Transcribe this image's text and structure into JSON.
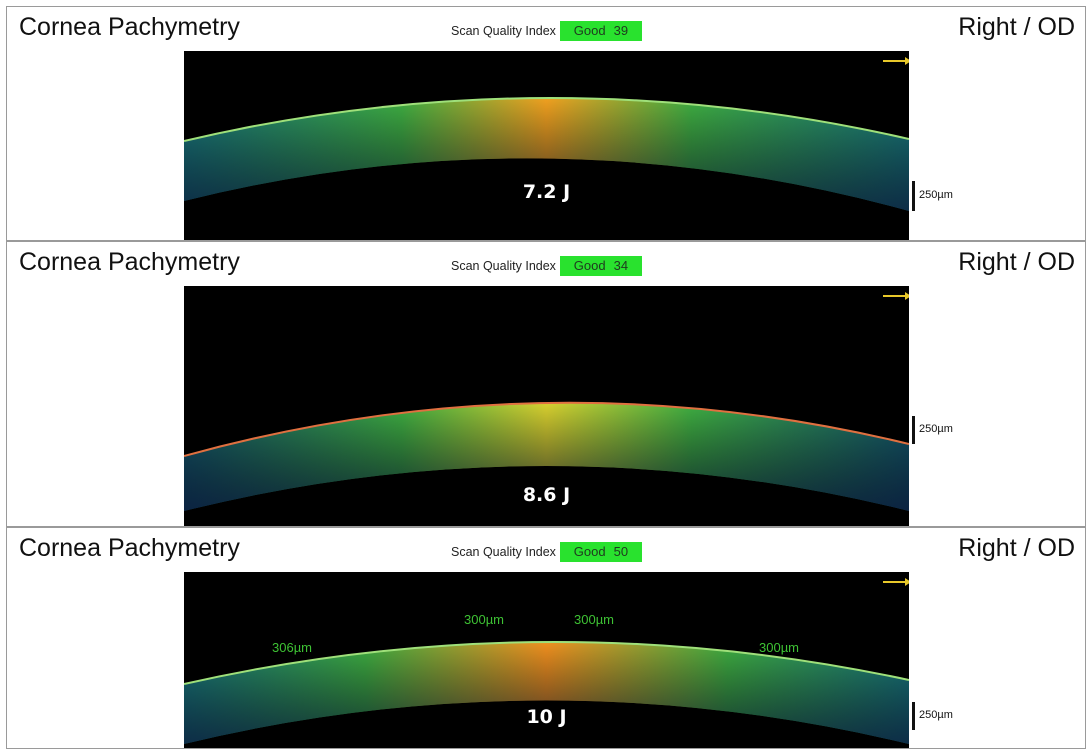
{
  "panels": [
    {
      "title": "Cornea Pachymetry",
      "eye": "Right / OD",
      "sqi_label": "Scan Quality Index",
      "sqi_status": "Good",
      "sqi_value": "39",
      "energy": "7.2 J",
      "scale_label": "250µm",
      "thickness_labels": []
    },
    {
      "title": "Cornea Pachymetry",
      "eye": "Right / OD",
      "sqi_label": "Scan Quality Index",
      "sqi_status": "Good",
      "sqi_value": "34",
      "energy": "8.6 J",
      "scale_label": "250µm",
      "thickness_labels": []
    },
    {
      "title": "Cornea Pachymetry",
      "eye": "Right / OD",
      "sqi_label": "Scan Quality Index",
      "sqi_status": "Good",
      "sqi_value": "50",
      "energy": "10 J",
      "scale_label": "250µm",
      "thickness_labels": [
        "306µm",
        "300µm",
        "300µm",
        "300µm"
      ]
    }
  ],
  "colors": {
    "sqi_good": "#29e22e",
    "arrow": "#e8c82a",
    "thickness_label": "#45d83a"
  }
}
